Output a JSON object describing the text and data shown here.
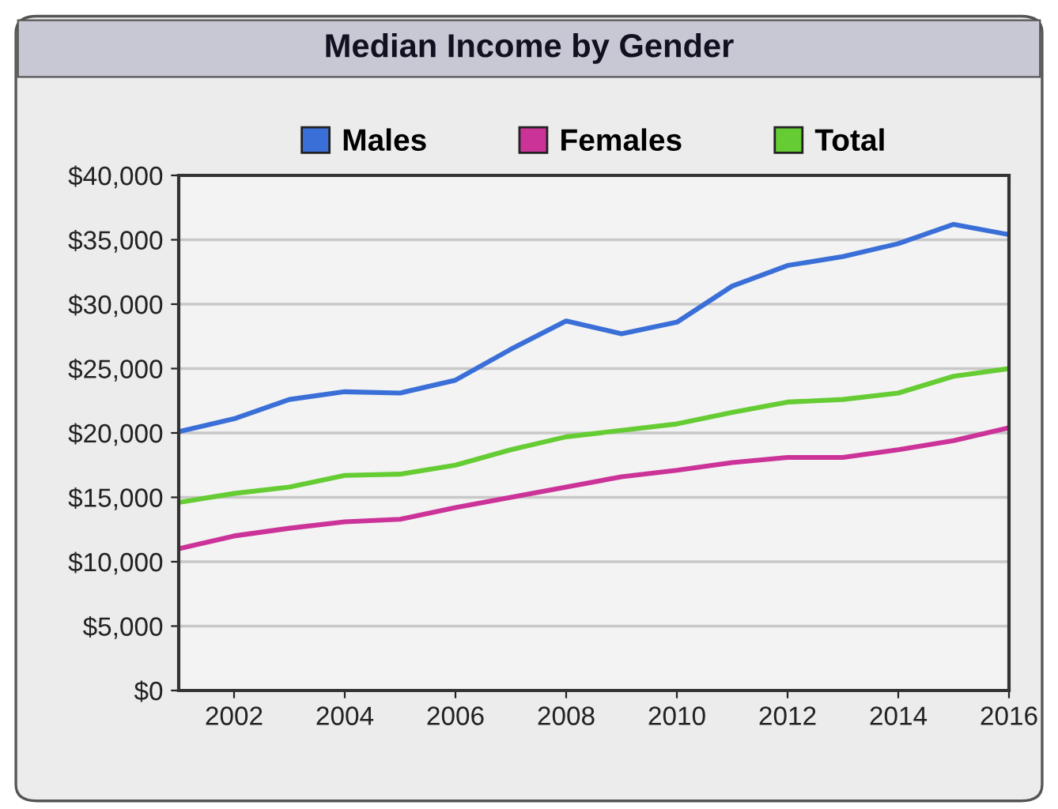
{
  "chart_data": {
    "type": "line",
    "title": "Median Income by Gender",
    "x": [
      2001,
      2002,
      2003,
      2004,
      2005,
      2006,
      2007,
      2008,
      2009,
      2010,
      2011,
      2012,
      2013,
      2014,
      2015,
      2016
    ],
    "series": [
      {
        "name": "Males",
        "color": "#3a6fd8",
        "values": [
          20100,
          21100,
          22600,
          23200,
          23100,
          24100,
          26500,
          28700,
          27700,
          28600,
          31400,
          33000,
          33700,
          34700,
          36200,
          35400
        ]
      },
      {
        "name": "Females",
        "color": "#cc3399",
        "values": [
          11000,
          12000,
          12600,
          13100,
          13300,
          14200,
          15000,
          15800,
          16600,
          17100,
          17700,
          18100,
          18100,
          18700,
          19400,
          20400
        ]
      },
      {
        "name": "Total",
        "color": "#66cc33",
        "values": [
          14600,
          15300,
          15800,
          16700,
          16800,
          17500,
          18700,
          19700,
          20200,
          20700,
          21600,
          22400,
          22600,
          23100,
          24400,
          25000
        ]
      }
    ],
    "xlim": [
      2001,
      2016
    ],
    "xticks": [
      2002,
      2004,
      2006,
      2008,
      2010,
      2012,
      2014,
      2016
    ],
    "ylim": [
      0,
      40000
    ],
    "yticks": [
      {
        "value": 0,
        "label": "$0"
      },
      {
        "value": 5000,
        "label": "$5,000"
      },
      {
        "value": 10000,
        "label": "$10,000"
      },
      {
        "value": 15000,
        "label": "$15,000"
      },
      {
        "value": 20000,
        "label": "$20,000"
      },
      {
        "value": 25000,
        "label": "$25,000"
      },
      {
        "value": 30000,
        "label": "$30,000"
      },
      {
        "value": 35000,
        "label": "$35,000"
      },
      {
        "value": 40000,
        "label": "$40,000"
      }
    ],
    "grid": "y",
    "legend": "top",
    "marker": "none",
    "line_style": "solid"
  }
}
